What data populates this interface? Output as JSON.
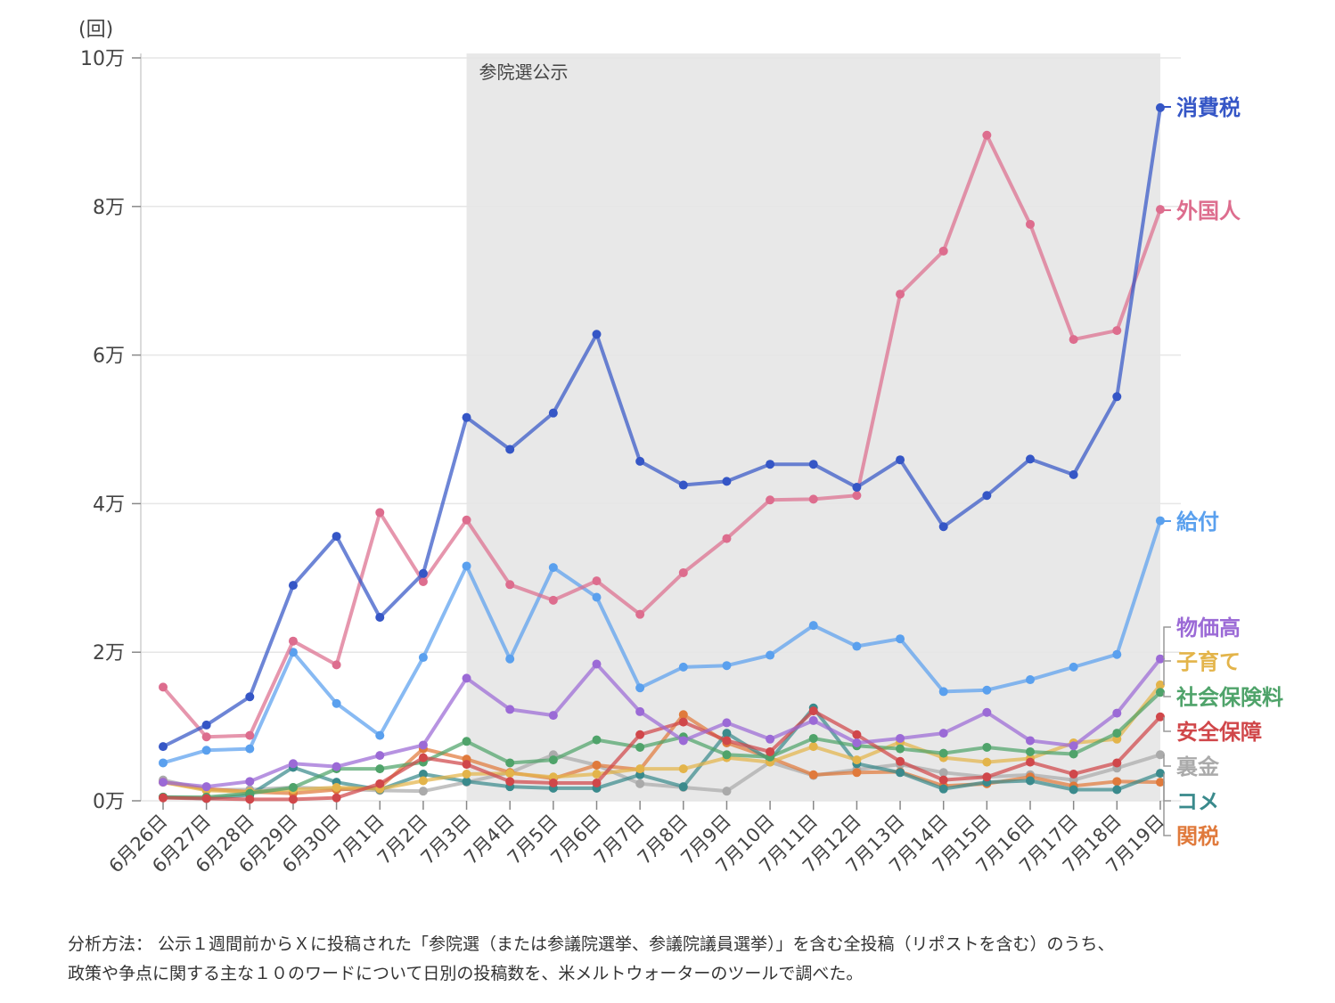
{
  "chart_data": {
    "type": "line",
    "y_unit": "(回)",
    "ylim": [
      0,
      100000
    ],
    "yticks": [
      {
        "value": 0,
        "label": "0万"
      },
      {
        "value": 20000,
        "label": "2万"
      },
      {
        "value": 40000,
        "label": "4万"
      },
      {
        "value": 60000,
        "label": "6万"
      },
      {
        "value": 80000,
        "label": "8万"
      },
      {
        "value": 100000,
        "label": "10万"
      }
    ],
    "categories": [
      "6月26日",
      "6月27日",
      "6月28日",
      "6月29日",
      "6月30日",
      "7月1日",
      "7月2日",
      "7月3日",
      "7月4日",
      "7月5日",
      "7月6日",
      "7月7日",
      "7月8日",
      "7月9日",
      "7月10日",
      "7月11日",
      "7月12日",
      "7月13日",
      "7月14日",
      "7月15日",
      "7月16日",
      "7月17日",
      "7月18日",
      "7月19日"
    ],
    "shaded_region": {
      "from": "7月3日",
      "to": "7月19日",
      "label": "参院選公示",
      "color": "#e8e8e8"
    },
    "grid": true,
    "series": [
      {
        "name": "裏金",
        "color": "#aaaaaa",
        "values": [
          2800,
          1500,
          1500,
          1800,
          1600,
          1400,
          1300,
          2500,
          3800,
          6200,
          4800,
          2300,
          1800,
          1300,
          5200,
          3400,
          4200,
          4900,
          3800,
          3200,
          3500,
          2800,
          4400,
          6200
        ]
      },
      {
        "name": "関税",
        "color": "#e07a3c",
        "values": [
          2500,
          1600,
          1200,
          1000,
          1500,
          1800,
          7000,
          5600,
          3800,
          3000,
          4800,
          4200,
          11600,
          7800,
          5800,
          3500,
          3800,
          3900,
          2000,
          2300,
          3200,
          2000,
          2600,
          2500
        ]
      },
      {
        "name": "コメ",
        "color": "#3a8a8c",
        "values": [
          500,
          300,
          800,
          4500,
          2500,
          1500,
          3600,
          2600,
          1900,
          1700,
          1700,
          3500,
          1900,
          9100,
          5500,
          12500,
          5000,
          3800,
          1600,
          2500,
          2700,
          1500,
          1500,
          3700
        ]
      },
      {
        "name": "子育て",
        "color": "#e3b44a",
        "values": [
          2500,
          1400,
          1200,
          1500,
          1800,
          1600,
          2700,
          3600,
          3700,
          3200,
          3600,
          4300,
          4300,
          5800,
          5200,
          7300,
          5500,
          7900,
          5800,
          5200,
          5700,
          7800,
          8300,
          15600
        ]
      },
      {
        "name": "社会保険料",
        "color": "#4fa36a",
        "values": [
          500,
          500,
          1000,
          1800,
          4300,
          4300,
          5200,
          8000,
          5100,
          5500,
          8200,
          7200,
          8600,
          6200,
          5900,
          8400,
          7400,
          7000,
          6400,
          7200,
          6600,
          6300,
          9100,
          14600
        ]
      },
      {
        "name": "安全保障",
        "color": "#d0474a",
        "values": [
          400,
          300,
          200,
          200,
          400,
          2300,
          5800,
          4900,
          2600,
          2400,
          2400,
          8900,
          10600,
          8100,
          6600,
          12100,
          8900,
          5300,
          2800,
          3200,
          5200,
          3600,
          5100,
          11300
        ]
      },
      {
        "name": "物価高",
        "color": "#9b6ad6",
        "values": [
          2500,
          1900,
          2600,
          5000,
          4600,
          6100,
          7500,
          16500,
          12300,
          11500,
          18400,
          12000,
          8100,
          10500,
          8300,
          10800,
          7800,
          8400,
          9100,
          11900,
          8100,
          7400,
          11800,
          19100
        ]
      },
      {
        "name": "給付",
        "color": "#5aa0ee",
        "values": [
          5100,
          6800,
          7000,
          20000,
          13100,
          8800,
          19300,
          31600,
          19100,
          31400,
          27400,
          15200,
          18000,
          18200,
          19600,
          23600,
          20800,
          21800,
          14700,
          14900,
          16300,
          18000,
          19700,
          37700
        ]
      },
      {
        "name": "外国人",
        "color": "#dd6d8e",
        "values": [
          15300,
          8600,
          8800,
          21500,
          18300,
          38800,
          29500,
          37800,
          29100,
          27000,
          29600,
          25100,
          30700,
          35300,
          40500,
          40600,
          41100,
          68200,
          74000,
          89600,
          77600,
          62100,
          63300,
          79600
        ]
      },
      {
        "name": "消費税",
        "color": "#3556c6",
        "values": [
          7300,
          10200,
          14000,
          29000,
          35600,
          24700,
          30600,
          51600,
          47300,
          52200,
          62800,
          45700,
          42500,
          43000,
          45300,
          45300,
          42200,
          45900,
          36900,
          41100,
          46000,
          43900,
          54400,
          93300
        ]
      }
    ]
  },
  "note_lines": [
    "分析方法： 公示１週間前からＸに投稿された「参院選（または参議院選挙、参議院議員選挙）」を含む全投稿（リポストを含む）のうち、",
    "政策や争点に関する主な１０のワードについて日別の投稿数を、米メルトウォーターのツールで調べた。"
  ]
}
